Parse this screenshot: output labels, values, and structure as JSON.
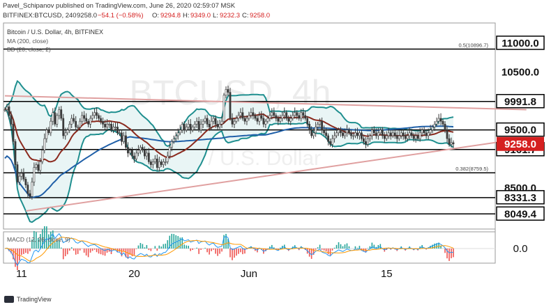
{
  "header": {
    "published_line": "Pavel_Schipanov published on TradingView.com, June 26, 2020 02:59:07 MSK",
    "symbol": "BITFINEX:BTCUSD, 240",
    "last": "9258.0",
    "change": "−54.1 (−0.58%)",
    "o_label": "O:",
    "o": "9294.8",
    "h_label": "H:",
    "h": "9349.0",
    "l_label": "L:",
    "l": "9232.3",
    "c_label": "C:",
    "c": "9258.0"
  },
  "legend": {
    "title": "Bitcoin / U.S. Dollar, 4h, BITFINEX",
    "ma": "MA (200, close)",
    "bb": "BB (20, close, 2)"
  },
  "watermark": {
    "symbol": "BTCUSD, 4h",
    "name": "Bitcoin / U.S. Dollar"
  },
  "macd_label": "MACD (12, 26, close, 9)",
  "macd_zero_label": "0.0",
  "footer_brand": "TradingView",
  "colors": {
    "candle": "#3a3a3a",
    "bollinger": "#1f8f8f",
    "bollinger_fill": "#e9f5f5",
    "ma200": "#1f5fa8",
    "ma20": "#8b2a1e",
    "trendline": "#e0a0a0",
    "price_badge": "#d52020",
    "macd_line": "#2196f3",
    "macd_signal": "#ff9800"
  },
  "chart_data": {
    "type": "candlestick",
    "title": "Bitcoin / U.S. Dollar, 4h, BITFINEX",
    "ylim": [
      7800,
      11300
    ],
    "y_ticks": [
      {
        "value": 11000,
        "label": "11000.0",
        "boxed": true
      },
      {
        "value": 10500,
        "label": "10500.0",
        "boxed": false
      },
      {
        "value": 9991.8,
        "label": "9991.8",
        "boxed": true
      },
      {
        "value": 9500,
        "label": "9500.0",
        "boxed": true
      },
      {
        "value": 9161.7,
        "label": "9161.7",
        "boxed": true
      },
      {
        "value": 8500,
        "label": "8500.0",
        "boxed": false
      },
      {
        "value": 8331.3,
        "label": "8331.3",
        "boxed": true
      },
      {
        "value": 8049.4,
        "label": "8049.4",
        "boxed": true
      }
    ],
    "current_price": {
      "value": 9258,
      "label": "9258.0"
    },
    "x_ticks": [
      {
        "index": 8,
        "label": "11"
      },
      {
        "index": 62,
        "label": "20"
      },
      {
        "index": 117,
        "label": "Jun"
      },
      {
        "index": 183,
        "label": "15"
      }
    ],
    "horizontal_levels": [
      {
        "value": 10896.7,
        "label": "0.5(10896.7)"
      },
      {
        "value": 9991.8,
        "label": ""
      },
      {
        "value": 9500,
        "label": ""
      },
      {
        "value": 9161.7,
        "label": ""
      },
      {
        "value": 8759.5,
        "label": "0.382(8759.5)"
      },
      {
        "value": 8331.3,
        "label": ""
      },
      {
        "value": 8049.4,
        "label": ""
      }
    ],
    "trendlines": [
      {
        "from": [
          0,
          10090
        ],
        "to": [
          250,
          9850
        ]
      },
      {
        "from": [
          10,
          8100
        ],
        "to": [
          250,
          9360
        ]
      }
    ],
    "close": [
      9850,
      9900,
      9750,
      9600,
      9300,
      8900,
      8600,
      8700,
      8750,
      8650,
      8550,
      8400,
      8350,
      8600,
      8850,
      8900,
      8800,
      8950,
      9150,
      9350,
      9500,
      9450,
      9650,
      9800,
      9600,
      9750,
      9850,
      9700,
      9400,
      9450,
      9500,
      9600,
      9700,
      9650,
      9550,
      9550,
      9650,
      9750,
      9700,
      9650,
      9600,
      9700,
      9750,
      9800,
      9750,
      9700,
      9650,
      9600,
      9550,
      9600,
      9600,
      9500,
      9550,
      9550,
      9450,
      9450,
      9300,
      9400,
      9200,
      9100,
      9150,
      9050,
      9000,
      9100,
      9150,
      9200,
      9150,
      9050,
      9100,
      8950,
      8900,
      8950,
      9000,
      8850,
      8950,
      8900,
      8950,
      8950,
      9050,
      9200,
      9300,
      9350,
      9400,
      9450,
      9500,
      9600,
      9500,
      9550,
      9600,
      9500,
      9550,
      9600,
      9650,
      9500,
      9600,
      9650,
      9700,
      9600,
      9550,
      9650,
      9700,
      9600,
      9550,
      9600,
      9650,
      10100,
      10200,
      10150,
      9700,
      9600,
      9650,
      9700,
      9750,
      9800,
      9700,
      9650,
      9700,
      9750,
      9800,
      9750,
      9700,
      9650,
      9750,
      9700,
      9600,
      9650,
      9700,
      9750,
      9800,
      9750,
      9700,
      9650,
      9700,
      9750,
      9800,
      9700,
      9650,
      9700,
      9750,
      9800,
      9750,
      9700,
      9800,
      9750,
      9700,
      9600,
      9500,
      9400,
      9450,
      9550,
      9600,
      9650,
      9500,
      9450,
      9400,
      9300,
      9250,
      9350,
      9400,
      9450,
      9500,
      9450,
      9400,
      9450,
      9500,
      9450,
      9400,
      9400,
      9450,
      9400,
      9450,
      9350,
      9300,
      9250,
      9350,
      9400,
      9500,
      9450,
      9400,
      9450,
      9500,
      9400,
      9350,
      9400,
      9450,
      9400,
      9450,
      9400,
      9350,
      9400,
      9450,
      9400,
      9350,
      9400,
      9450,
      9400,
      9350,
      9400,
      9350,
      9450,
      9500,
      9450,
      9400,
      9450,
      9500,
      9550,
      9600,
      9650,
      9700,
      9650,
      9600,
      9500,
      9350,
      9250,
      9280,
      9258
    ],
    "macd": {
      "label": "MACD (12, 26, close, 9)",
      "zero": 0.0
    }
  }
}
